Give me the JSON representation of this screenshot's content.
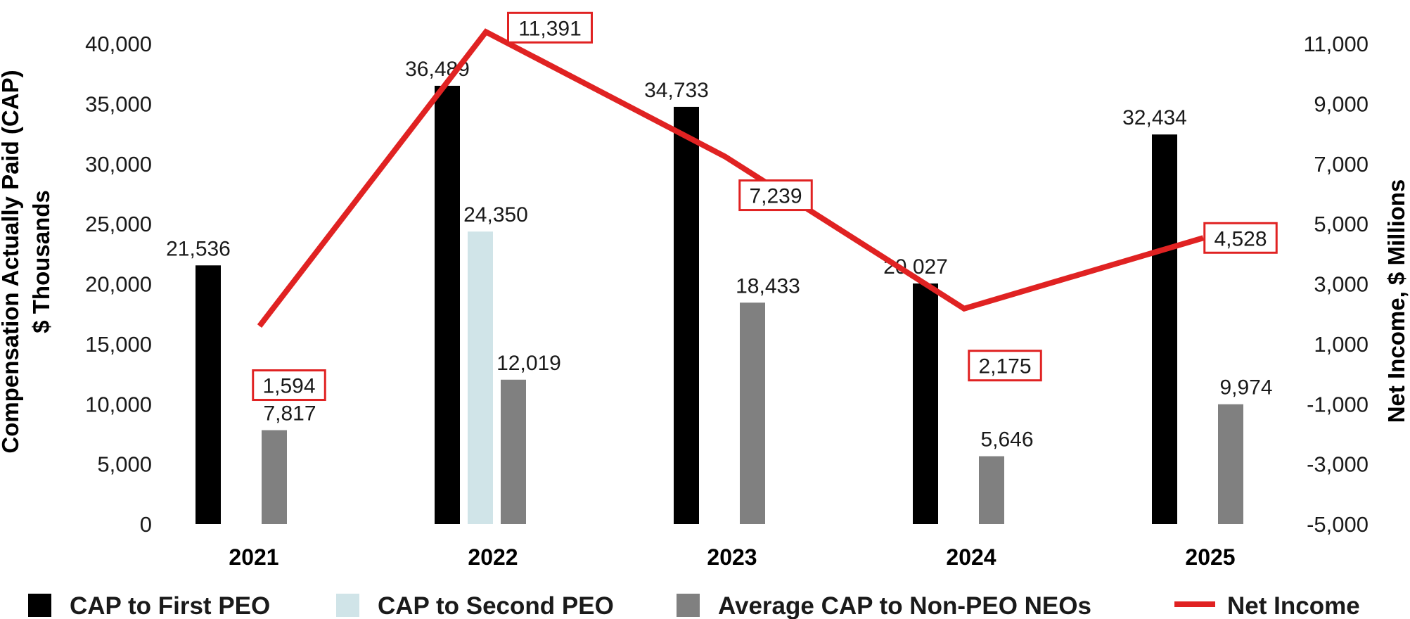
{
  "chart_data": {
    "type": "bar",
    "categories": [
      "2021",
      "2022",
      "2023",
      "2024",
      "2025"
    ],
    "series": [
      {
        "name": "CAP to First PEO",
        "axis": "left",
        "color": "#000000",
        "values": [
          21536,
          36489,
          34733,
          20027,
          32434
        ]
      },
      {
        "name": "CAP to Second PEO",
        "axis": "left",
        "color": "#d0e4e8",
        "values": [
          null,
          24350,
          null,
          null,
          null
        ]
      },
      {
        "name": "Average CAP to Non-PEO NEOs",
        "axis": "left",
        "color": "#808080",
        "values": [
          7817,
          12019,
          18433,
          5646,
          9974
        ]
      },
      {
        "name": "Net Income",
        "axis": "right",
        "type": "line",
        "color": "#e02222",
        "values": [
          1594,
          11391,
          7239,
          2175,
          4528
        ]
      }
    ],
    "value_labels": {
      "CAP to First PEO": [
        "21,536",
        "36,489",
        "34,733",
        "20,027",
        "32,434"
      ],
      "CAP to Second PEO": [
        "",
        "24,350",
        "",
        "",
        ""
      ],
      "Average CAP to Non-PEO NEOs": [
        "7,817",
        "12,019",
        "18,433",
        "5,646",
        "9,974"
      ],
      "Net Income": [
        "1,594",
        "11,391",
        "7,239",
        "2,175",
        "4,528"
      ]
    },
    "ylabel_left": [
      "Compensation Actually Paid (CAP)",
      "$ Thousands"
    ],
    "ylabel_right": "Net Income, $ Millions",
    "ylim_left": [
      0,
      40000
    ],
    "ylim_right": [
      -5000,
      11000
    ],
    "yticks_left": [
      "0",
      "5,000",
      "10,000",
      "15,000",
      "20,000",
      "25,000",
      "30,000",
      "35,000",
      "40,000"
    ],
    "yticks_right": [
      "-5,000",
      "-3,000",
      "-1,000",
      "1,000",
      "3,000",
      "5,000",
      "7,000",
      "9,000",
      "11,000"
    ],
    "legend_position": "bottom",
    "grid": false
  }
}
